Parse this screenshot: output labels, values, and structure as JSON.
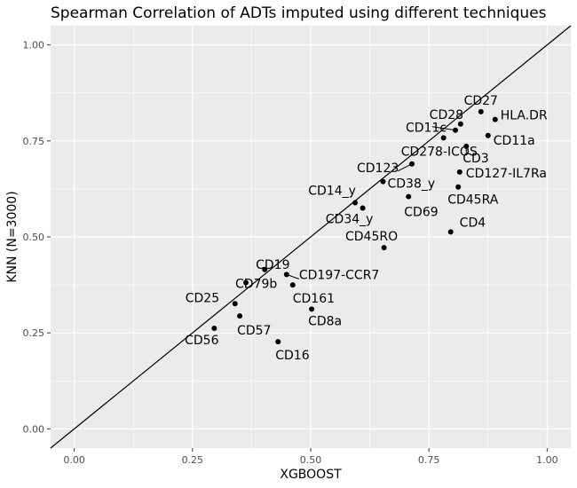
{
  "chart_data": {
    "type": "scatter",
    "title": "Spearman Correlation of ADTs imputed using different techniques",
    "xlabel": "XGBOOST",
    "ylabel": "KNN (N=3000)",
    "xlim": [
      -0.05,
      1.05
    ],
    "ylim": [
      -0.05,
      1.05
    ],
    "xticks": [
      "0.00",
      "0.25",
      "0.50",
      "0.75",
      "1.00"
    ],
    "yticks": [
      "0.00",
      "0.25",
      "0.50",
      "0.75",
      "1.00"
    ],
    "grid": true,
    "reference_line": "y = x",
    "points": [
      {
        "label": "CD27",
        "x": 0.86,
        "y": 0.826
      },
      {
        "label": "HLA.DR",
        "x": 0.89,
        "y": 0.806
      },
      {
        "label": "CD28",
        "x": 0.817,
        "y": 0.794
      },
      {
        "label": "CD11c",
        "x": 0.806,
        "y": 0.778
      },
      {
        "label": "CD11a",
        "x": 0.875,
        "y": 0.764
      },
      {
        "label": "CD278-ICOS",
        "x": 0.781,
        "y": 0.758
      },
      {
        "label": "CD3",
        "x": 0.829,
        "y": 0.736
      },
      {
        "label": "CD123",
        "x": 0.714,
        "y": 0.69
      },
      {
        "label": "CD127-IL7Ra",
        "x": 0.815,
        "y": 0.669
      },
      {
        "label": "CD38_y",
        "x": 0.653,
        "y": 0.644
      },
      {
        "label": "CD45RA",
        "x": 0.812,
        "y": 0.63
      },
      {
        "label": "CD69",
        "x": 0.707,
        "y": 0.605
      },
      {
        "label": "CD14_y",
        "x": 0.594,
        "y": 0.589
      },
      {
        "label": "CD34_y",
        "x": 0.61,
        "y": 0.575
      },
      {
        "label": "CD4",
        "x": 0.796,
        "y": 0.513
      },
      {
        "label": "CD45RO",
        "x": 0.655,
        "y": 0.472
      },
      {
        "label": "CD19",
        "x": 0.403,
        "y": 0.415
      },
      {
        "label": "CD197-CCR7",
        "x": 0.449,
        "y": 0.402
      },
      {
        "label": "CD79b",
        "x": 0.363,
        "y": 0.381
      },
      {
        "label": "CD161",
        "x": 0.462,
        "y": 0.375
      },
      {
        "label": "CD25",
        "x": 0.34,
        "y": 0.326
      },
      {
        "label": "CD8a",
        "x": 0.502,
        "y": 0.312
      },
      {
        "label": "CD57",
        "x": 0.35,
        "y": 0.294
      },
      {
        "label": "CD56",
        "x": 0.296,
        "y": 0.262
      },
      {
        "label": "CD16",
        "x": 0.431,
        "y": 0.227
      }
    ]
  }
}
